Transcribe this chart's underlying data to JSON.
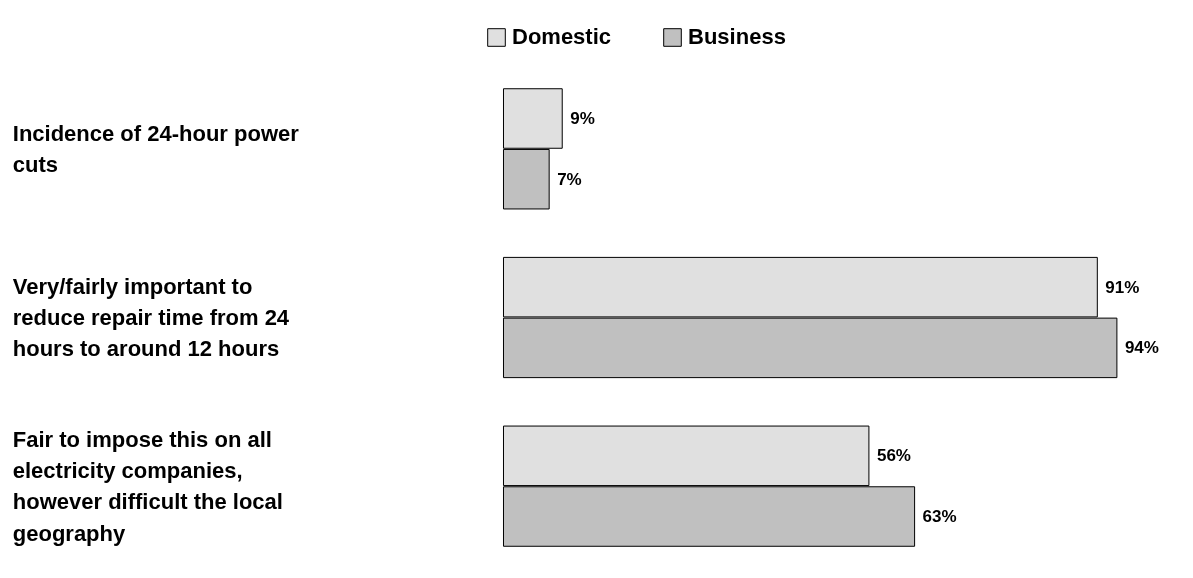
{
  "chart_data": {
    "type": "bar",
    "orientation": "horizontal",
    "categories": [
      "Incidence of 24-hour power cuts",
      "Very/fairly important to reduce repair time from 24 hours to around 12 hours",
      "Fair to impose this on all electricity companies, however difficult the local geography"
    ],
    "series": [
      {
        "name": "Domestic",
        "color": "#e0e0e0",
        "values": [
          9,
          91,
          56
        ],
        "value_labels": [
          "9%",
          "91%",
          "56%"
        ]
      },
      {
        "name": "Business",
        "color": "#c0c0c0",
        "values": [
          7,
          94,
          63
        ],
        "value_labels": [
          "7%",
          "94%",
          "63%"
        ]
      }
    ],
    "data_labels": true,
    "legend": "top",
    "grid": false
  }
}
